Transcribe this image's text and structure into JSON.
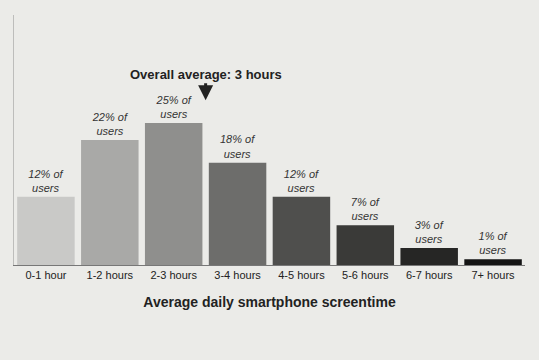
{
  "chart_data": {
    "type": "bar",
    "xlabel": "Average daily smartphone screentime",
    "categories": [
      "0-1 hour",
      "1-2 hours",
      "2-3 hours",
      "3-4 hours",
      "4-5 hours",
      "5-6 hours",
      "6-7 hours",
      "7+ hours"
    ],
    "values": [
      12,
      22,
      25,
      18,
      12,
      7,
      3,
      1
    ],
    "value_labels": [
      "12% of users",
      "22% of users",
      "25% of users",
      "18% of users",
      "12% of users",
      "7% of users",
      "3% of users",
      "1% of users"
    ],
    "colors": [
      "#c9c9c7",
      "#a9a9a7",
      "#8f8f8d",
      "#6d6d6b",
      "#4f4f4d",
      "#3a3a38",
      "#262625",
      "#141414"
    ],
    "annotations": [
      {
        "text": "Overall average: 3 hours",
        "x": 2.5,
        "y": 29
      }
    ],
    "ylim": [
      0,
      44
    ],
    "data_labels": true,
    "tick_labels": "x",
    "grid": false
  }
}
